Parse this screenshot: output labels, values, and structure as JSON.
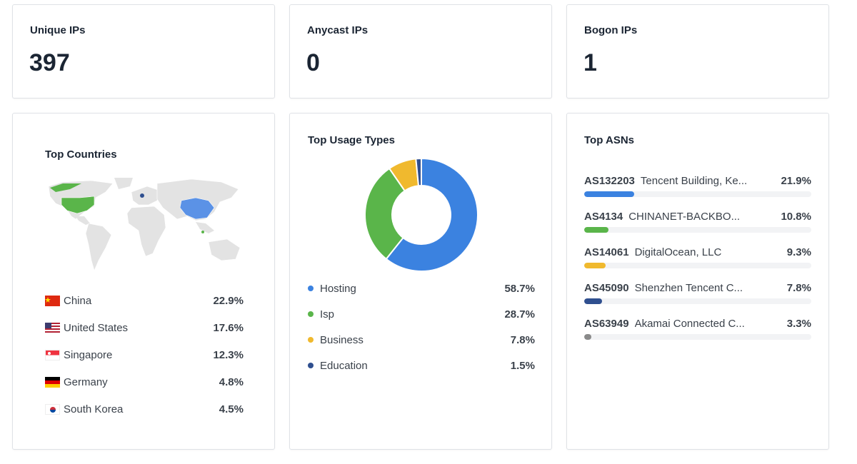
{
  "stats": [
    {
      "title": "Unique IPs",
      "value": "397"
    },
    {
      "title": "Anycast IPs",
      "value": "0"
    },
    {
      "title": "Bogon IPs",
      "value": "1"
    }
  ],
  "countries": {
    "title": "Top Countries",
    "items": [
      {
        "name": "China",
        "pct": "22.9%",
        "flag": "cn"
      },
      {
        "name": "United States",
        "pct": "17.6%",
        "flag": "us"
      },
      {
        "name": "Singapore",
        "pct": "12.3%",
        "flag": "sg"
      },
      {
        "name": "Germany",
        "pct": "4.8%",
        "flag": "de"
      },
      {
        "name": "South Korea",
        "pct": "4.5%",
        "flag": "kr"
      }
    ]
  },
  "usage": {
    "title": "Top Usage Types",
    "items": [
      {
        "name": "Hosting",
        "pct": "58.7%",
        "value": 58.7,
        "color": "#3b82e0"
      },
      {
        "name": "Isp",
        "pct": "28.7%",
        "value": 28.7,
        "color": "#5ab54a"
      },
      {
        "name": "Business",
        "pct": "7.8%",
        "value": 7.8,
        "color": "#f0b92e"
      },
      {
        "name": "Education",
        "pct": "1.5%",
        "value": 1.5,
        "color": "#2f4f8f"
      }
    ]
  },
  "asns": {
    "title": "Top ASNs",
    "items": [
      {
        "id": "AS132203",
        "name": "Tencent Building, Ke...",
        "pct": "21.9%",
        "value": 21.9,
        "color": "#3b82e0"
      },
      {
        "id": "AS4134",
        "name": "CHINANET-BACKBO...",
        "pct": "10.8%",
        "value": 10.8,
        "color": "#5ab54a"
      },
      {
        "id": "AS14061",
        "name": "DigitalOcean, LLC",
        "pct": "9.3%",
        "value": 9.3,
        "color": "#f0b92e"
      },
      {
        "id": "AS45090",
        "name": "Shenzhen Tencent C...",
        "pct": "7.8%",
        "value": 7.8,
        "color": "#2f4f8f"
      },
      {
        "id": "AS63949",
        "name": "Akamai Connected C...",
        "pct": "3.3%",
        "value": 3.3,
        "color": "#8a8a8a"
      }
    ]
  }
}
